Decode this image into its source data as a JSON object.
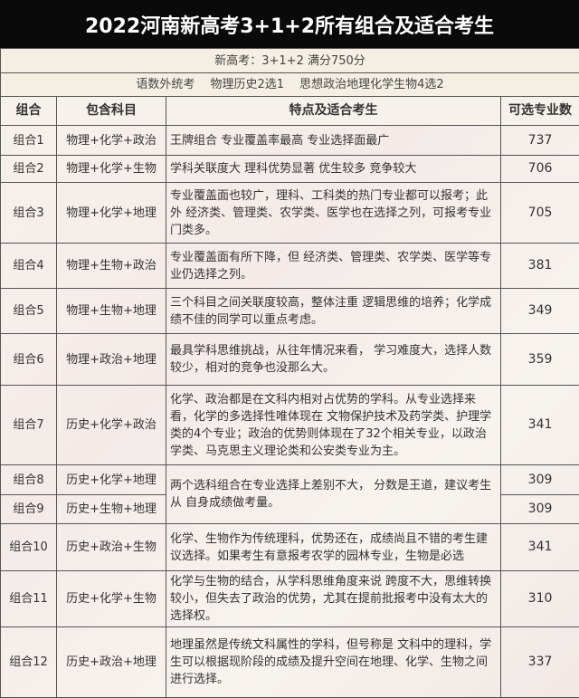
{
  "title": "2022河南新高考3+1+2所有组合及适合考生",
  "subtitle1": "新高考：3+1+2 满分750分",
  "subtitle2": "语数外统考　 物理历史2选1　 思想政治地理化学生物4选2",
  "headers": [
    "组合",
    "包含科目",
    "特点及适合考生",
    "可选专业数"
  ],
  "rows": [
    {
      "name": "组合1",
      "subjects": "物理+化学+政治",
      "desc": "王牌组合 专业覆盖率最高 专业选择面最广",
      "count": "737"
    },
    {
      "name": "组合2",
      "subjects": "物理+化学+生物",
      "desc": "学科关联度大 理科优势显著  优生较多 竞争较大",
      "count": "706"
    },
    {
      "name": "组合3",
      "subjects": "物理+化学+地理",
      "desc": "专业覆盖面也较广，理科、工科类的热门专业都可以报考；此外 经济类、管理类、农学类、医学也在选择之列，可报考专业门类多。",
      "count": "705"
    },
    {
      "name": "组合4",
      "subjects": "物理+生物+政治",
      "desc": "专业覆盖面有所下降，但 经济类、管理类、农学类、医学等专业仍选择之列。",
      "count": "381"
    },
    {
      "name": "组合5",
      "subjects": "物理+生物+地理",
      "desc": "三个科目之间关联度较高，整体注重 逻辑思维的培养；化学成绩不佳的同学可以重点考虑。",
      "count": "349"
    },
    {
      "name": "组合6",
      "subjects": "物理+政治+地理",
      "desc": "最具学科思维挑战，从往年情况来看， 学习难度大，选择人数较少，相对的竞争也没那么大。",
      "count": "359"
    },
    {
      "name": "组合7",
      "subjects": "历史+化学+政治",
      "desc": "化学、政治都是在文科内相对占优势的学科。从专业选择来看，化学的多选择性唯体现在 文物保护技术及药学类、护理学类的4个专业；政治的优势则体现在了32个相关专业，以政治学类、马克思主义理论类和公安类专业为主。",
      "count": "341"
    },
    {
      "name": "组合8",
      "subjects": "历史+化学+地理",
      "desc": "两个选科组合在专业选择上差别不大， 分数是王道，建议考生从 自身成绩做考量。",
      "count": "309"
    },
    {
      "name": "组合9",
      "subjects": "历史+生物+地理",
      "count": "309"
    },
    {
      "name": "组合10",
      "subjects": "历史+政治+生物",
      "desc": "化学、生物作为传统理科，优势还在，成绩尚且不错的考生建议选择。如果考生有意报考农学的园林专业，生物是必选",
      "count": "341"
    },
    {
      "name": "组合11",
      "subjects": "历史+化学+生物",
      "desc": "化学与生物的结合，从学科思维角度来说 跨度不大，思维转换较小，但失去了政治的优势，尤其在提前批报考中没有太大的选择权。",
      "count": "310"
    },
    {
      "name": "组合12",
      "subjects": "历史+政治+地理",
      "desc": "地理虽然是传统文科属性的学科，但号称是 文科中的理科，学生可以根据现阶段的成绩及提升空间在地理、化学、生物之间进行选择。",
      "count": "337"
    }
  ]
}
